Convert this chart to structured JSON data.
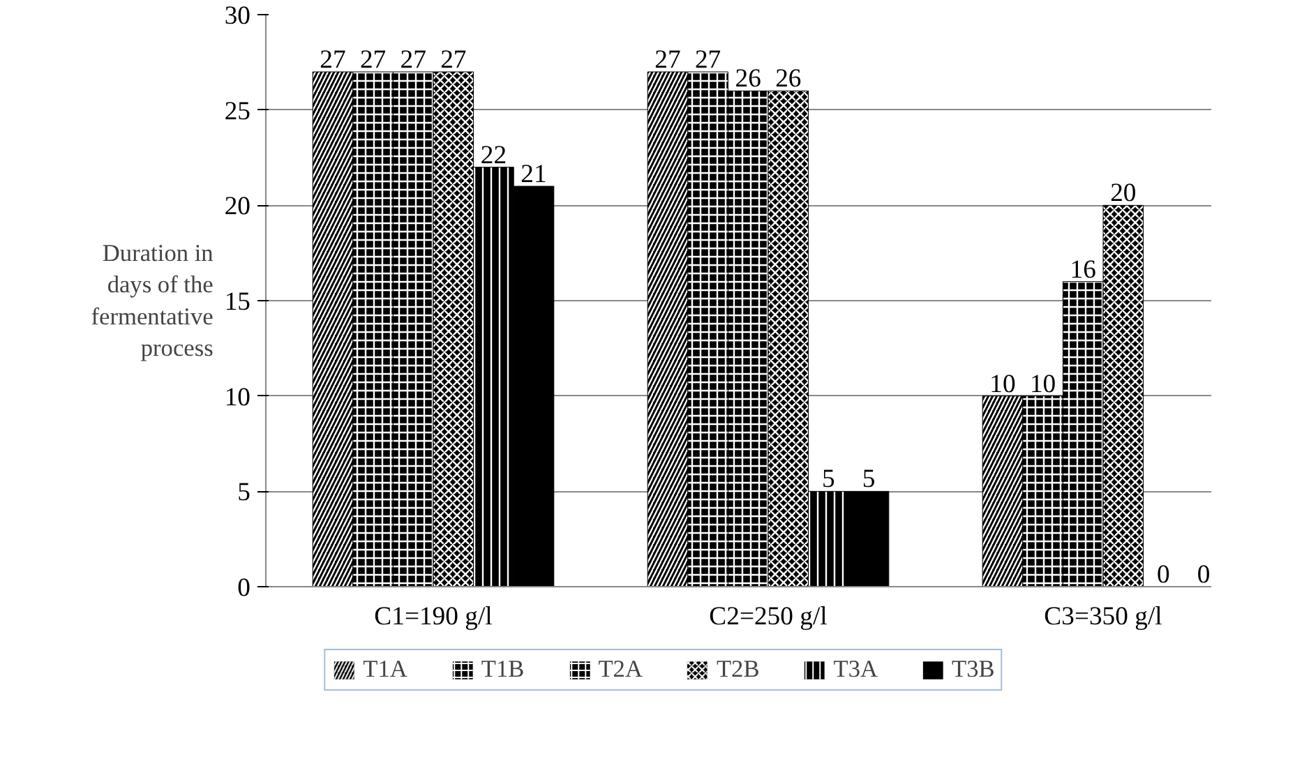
{
  "chart_data": {
    "type": "bar",
    "ylabel": "Duration in days of the fermentative process",
    "categories": [
      "C1=190 g/l",
      "C2=250 g/l",
      "C3=350 g/l"
    ],
    "series": [
      {
        "name": "T1A",
        "color": "#000000",
        "values": [
          27,
          27,
          10
        ]
      },
      {
        "name": "T1B",
        "color": "#000000",
        "values": [
          27,
          27,
          10
        ]
      },
      {
        "name": "T2A",
        "color": "#000000",
        "values": [
          27,
          26,
          16
        ]
      },
      {
        "name": "T2B",
        "color": "#000000",
        "values": [
          27,
          26,
          20
        ]
      },
      {
        "name": "T3A",
        "color": "#000000",
        "values": [
          22,
          5,
          0
        ]
      },
      {
        "name": "T3B",
        "color": "#000000",
        "values": [
          21,
          5,
          0
        ]
      }
    ],
    "ylim": [
      0,
      30
    ],
    "yticks": [
      0,
      5,
      10,
      15,
      20,
      25,
      30
    ],
    "grid": "y",
    "legend": "bottom",
    "data_labels": true
  }
}
